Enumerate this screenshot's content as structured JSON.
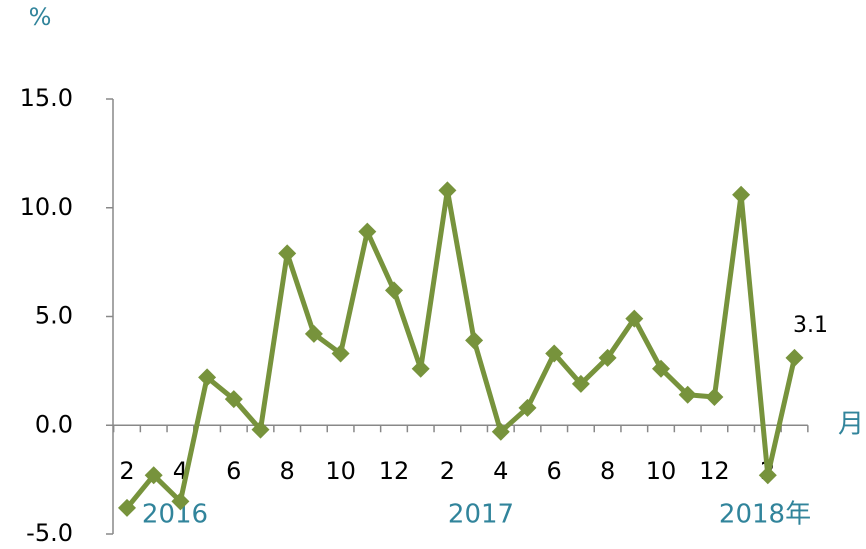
{
  "chart_data": {
    "type": "line",
    "y_label": "%",
    "x_label": "月",
    "categories": [
      "2",
      null,
      "4",
      null,
      "6",
      null,
      "8",
      null,
      "10",
      null,
      "12",
      null,
      "2",
      null,
      "4",
      null,
      "6",
      null,
      "8",
      null,
      "10",
      null,
      "12",
      null,
      "2",
      null
    ],
    "year_labels": [
      "2016",
      "2017",
      "2018年"
    ],
    "series": [
      {
        "name": "",
        "color": "#77933c",
        "values": [
          -3.8,
          -2.3,
          -3.5,
          2.2,
          1.2,
          -0.2,
          7.9,
          4.2,
          3.3,
          8.9,
          6.2,
          2.6,
          10.8,
          3.9,
          -0.3,
          0.8,
          3.3,
          1.9,
          3.1,
          4.9,
          2.6,
          1.4,
          1.3,
          10.6,
          -2.3,
          3.1
        ]
      }
    ],
    "annotations": [
      {
        "text": "3.1",
        "index": 25
      }
    ],
    "ylim": [
      -5,
      15
    ],
    "yticks": [
      {
        "value": -5,
        "label": "-5.0"
      },
      {
        "value": 0,
        "label": "0.0"
      },
      {
        "value": 5,
        "label": "5.0"
      },
      {
        "value": 10,
        "label": "10.0"
      },
      {
        "value": 15,
        "label": "15.0"
      }
    ]
  }
}
